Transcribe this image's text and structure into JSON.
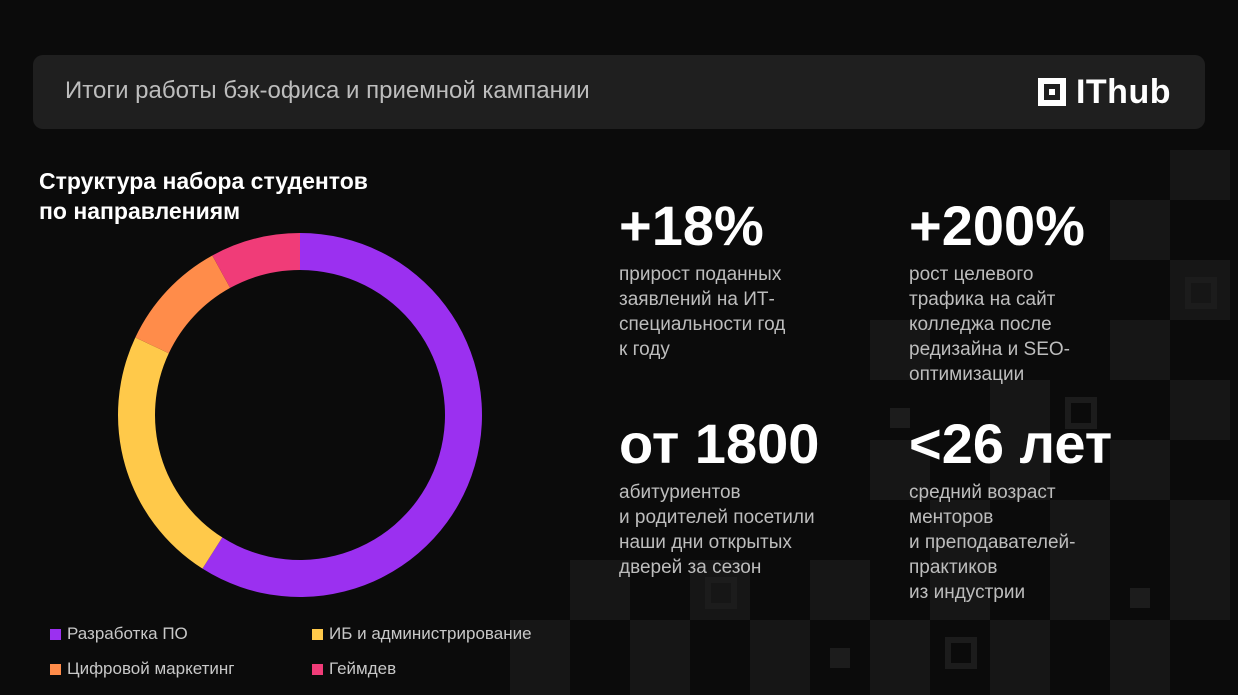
{
  "header": {
    "title": "Итоги работы бэк-офиса и приемной кампании",
    "logo_text": "IThub"
  },
  "chart_data": {
    "type": "pie",
    "title": "Структура набора студентов\nпо направлениям",
    "donut": true,
    "legend_position": "bottom",
    "categories": [
      "Разработка ПО",
      "ИБ и администрирование",
      "Цифровой маркетинг",
      "Геймдев"
    ],
    "values": [
      59,
      23,
      10,
      8
    ],
    "colors": [
      "#9b30f0",
      "#ffc94a",
      "#ff8c4a",
      "#f03c78"
    ],
    "order_clockwise_from_top": [
      "Разработка ПО",
      "ИБ и администрирование",
      "Цифровой маркетинг",
      "Геймдев"
    ]
  },
  "stats": [
    {
      "value": "+18%",
      "desc": "прирост поданных\nзаявлений на ИТ-\nспециальности год\nк году"
    },
    {
      "value": "+200%",
      "desc": "рост целевого\nтрафика на сайт\nколледжа после\nредизайна и SEO-\nоптимизации"
    },
    {
      "value": "от 1800",
      "desc": "абитуриентов\nи родителей посетили\nнаши дни открытых\nдверей за сезон"
    },
    {
      "value": "<26 лет",
      "desc": "средний возраст\nменторов\nи преподавателей-\nпрактиков\nиз индустрии"
    }
  ]
}
